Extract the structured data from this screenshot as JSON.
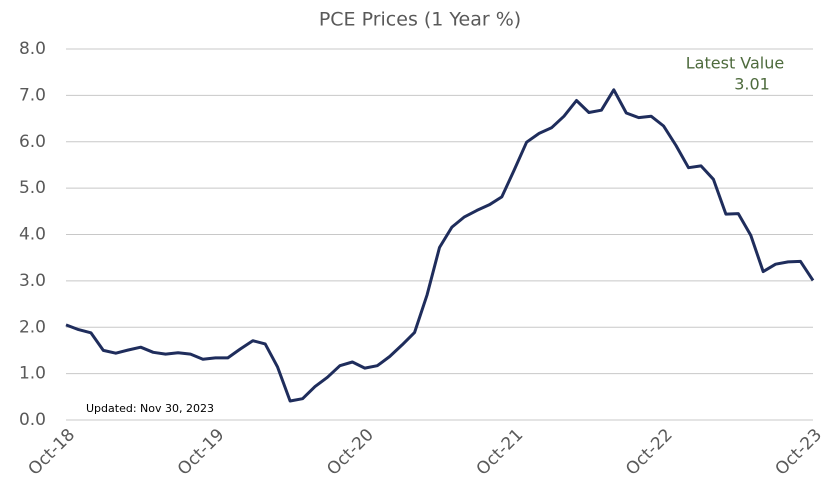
{
  "chart_data": {
    "type": "line",
    "title": "PCE Prices (1 Year %)",
    "categories": [
      "Oct-18",
      null,
      null,
      null,
      null,
      null,
      null,
      null,
      null,
      null,
      null,
      null,
      "Oct-19",
      null,
      null,
      null,
      null,
      null,
      null,
      null,
      null,
      null,
      null,
      null,
      "Oct-20",
      null,
      null,
      null,
      null,
      null,
      null,
      null,
      null,
      null,
      null,
      null,
      "Oct-21",
      null,
      null,
      null,
      null,
      null,
      null,
      null,
      null,
      null,
      null,
      null,
      "Oct-22",
      null,
      null,
      null,
      null,
      null,
      null,
      null,
      null,
      null,
      null,
      null,
      "Oct-23"
    ],
    "series": [
      {
        "name": "PCE Prices",
        "color": "#1f2d5c",
        "values": [
          2.05,
          1.95,
          1.88,
          1.5,
          1.44,
          1.51,
          1.57,
          1.46,
          1.42,
          1.45,
          1.42,
          1.31,
          1.34,
          1.34,
          1.53,
          1.71,
          1.64,
          1.14,
          0.41,
          0.46,
          0.72,
          0.92,
          1.17,
          1.25,
          1.12,
          1.17,
          1.37,
          1.62,
          1.89,
          2.7,
          3.72,
          4.16,
          4.38,
          4.52,
          4.64,
          4.81,
          5.39,
          5.99,
          6.18,
          6.3,
          6.55,
          6.89,
          6.63,
          6.68,
          7.12,
          6.62,
          6.52,
          6.55,
          6.34,
          5.92,
          5.44,
          5.48,
          5.19,
          4.44,
          4.45,
          3.98,
          3.2,
          3.36,
          3.41,
          3.42,
          3.01
        ]
      }
    ],
    "ylim": [
      0,
      8
    ],
    "yticks": [
      {
        "value": 0,
        "label": "0.0"
      },
      {
        "value": 1,
        "label": "1.0"
      },
      {
        "value": 2,
        "label": "2.0"
      },
      {
        "value": 3,
        "label": "3.0"
      },
      {
        "value": 4,
        "label": "4.0"
      },
      {
        "value": 5,
        "label": "5.0"
      },
      {
        "value": 6,
        "label": "6.0"
      },
      {
        "value": 7,
        "label": "7.0"
      },
      {
        "value": 8,
        "label": "8.0"
      }
    ],
    "grid": true,
    "annotations": [
      "Latest Value",
      "3.01",
      "Updated: Nov 30, 2023"
    ]
  }
}
